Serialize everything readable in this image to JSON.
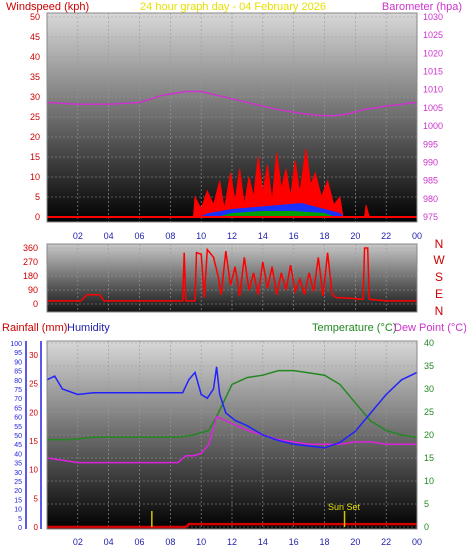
{
  "header": {
    "windspeed_label": "Windspeed (kph)",
    "title": "24 hour graph day - 04 February 2026",
    "barometer_label": "Barometer (hpa)"
  },
  "compass": [
    "N",
    "W",
    "S",
    "E",
    "N"
  ],
  "bottom_header": {
    "rain_label": "Rainfall (mm)",
    "humidity_label": "Humidity",
    "temp_label": "Temperature (°C)",
    "dew_label": "Dew Point (°C)"
  },
  "sunset_label": "Sun Set",
  "colors": {
    "wind": "#ff0000",
    "gust": "#ff0000",
    "wind_avg_fill": "#1a30ff",
    "wind_low_fill": "#00a000",
    "barometer": "#cc33cc",
    "direction": "#ff0000",
    "humidity": "#2222ff",
    "temperature": "#228822",
    "dewpoint": "#dd22dd",
    "rainfall": "#d40000",
    "sunset": "#d8c000",
    "title": "#e8e000",
    "dew_label": "#cc33cc"
  },
  "chart_data": [
    {
      "type": "line",
      "name": "wind-barometer",
      "x_tick_labels": [
        "02",
        "04",
        "06",
        "08",
        "10",
        "12",
        "14",
        "16",
        "18",
        "20",
        "22",
        "00"
      ],
      "x_range_hours": [
        0,
        24
      ],
      "y_left_ticks": [
        "0",
        "5",
        "10",
        "15",
        "20",
        "25",
        "30",
        "35",
        "40",
        "45",
        "50"
      ],
      "ylim_left": [
        0,
        50
      ],
      "y_right_ticks": [
        "975",
        "980",
        "985",
        "990",
        "995",
        "1000",
        "1005",
        "1010",
        "1015",
        "1020",
        "1025",
        "1030"
      ],
      "ylim_right": [
        975,
        1030
      ],
      "grid": true,
      "series": [
        {
          "name": "Barometer",
          "axis": "right",
          "points": [
            [
              0.0,
              1006.5
            ],
            [
              2.0,
              1006.0
            ],
            [
              4.0,
              1006.0
            ],
            [
              6.0,
              1006.5
            ],
            [
              7.5,
              1008.5
            ],
            [
              9.0,
              1009.5
            ],
            [
              10.0,
              1009.5
            ],
            [
              11.0,
              1008.5
            ],
            [
              12.0,
              1007.5
            ],
            [
              13.5,
              1006.0
            ],
            [
              15.0,
              1004.5
            ],
            [
              16.5,
              1003.5
            ],
            [
              17.5,
              1003.0
            ],
            [
              18.5,
              1002.8
            ],
            [
              19.5,
              1003.3
            ],
            [
              20.5,
              1004.5
            ],
            [
              22.0,
              1005.5
            ],
            [
              23.5,
              1006.3
            ],
            [
              24.0,
              1006.5
            ]
          ]
        },
        {
          "name": "Wind gust",
          "axis": "left",
          "points": [
            [
              0.0,
              0.0
            ],
            [
              9.5,
              0.0
            ],
            [
              9.6,
              5.0
            ],
            [
              10.0,
              2.0
            ],
            [
              10.4,
              6.5
            ],
            [
              10.8,
              3.0
            ],
            [
              11.2,
              9.0
            ],
            [
              11.5,
              2.0
            ],
            [
              11.9,
              11.0
            ],
            [
              12.2,
              4.0
            ],
            [
              12.5,
              12.0
            ],
            [
              12.8,
              3.0
            ],
            [
              13.1,
              10.0
            ],
            [
              13.4,
              5.0
            ],
            [
              13.7,
              15.0
            ],
            [
              14.0,
              6.0
            ],
            [
              14.3,
              13.0
            ],
            [
              14.6,
              4.0
            ],
            [
              14.9,
              16.0
            ],
            [
              15.2,
              7.0
            ],
            [
              15.5,
              12.0
            ],
            [
              15.8,
              5.0
            ],
            [
              16.1,
              14.0
            ],
            [
              16.4,
              6.0
            ],
            [
              16.8,
              17.0
            ],
            [
              17.1,
              8.0
            ],
            [
              17.4,
              11.0
            ],
            [
              17.8,
              5.0
            ],
            [
              18.2,
              9.0
            ],
            [
              18.6,
              3.0
            ],
            [
              19.0,
              5.0
            ],
            [
              19.2,
              0.0
            ],
            [
              20.6,
              0.0
            ],
            [
              20.7,
              3.0
            ],
            [
              20.9,
              0.0
            ],
            [
              24.0,
              0.0
            ]
          ]
        },
        {
          "name": "Wind average",
          "axis": "left",
          "points": [
            [
              0.0,
              0.0
            ],
            [
              9.8,
              0.0
            ],
            [
              10.5,
              1.0
            ],
            [
              12.0,
              2.0
            ],
            [
              13.5,
              2.5
            ],
            [
              15.0,
              3.0
            ],
            [
              16.5,
              3.5
            ],
            [
              18.0,
              2.0
            ],
            [
              19.0,
              1.0
            ],
            [
              19.3,
              0.0
            ],
            [
              24.0,
              0.0
            ]
          ]
        },
        {
          "name": "Wind low",
          "axis": "left",
          "points": [
            [
              0.0,
              0.0
            ],
            [
              11.0,
              0.0
            ],
            [
              12.0,
              1.0
            ],
            [
              14.0,
              1.5
            ],
            [
              16.0,
              1.5
            ],
            [
              18.0,
              1.0
            ],
            [
              18.8,
              0.0
            ],
            [
              24.0,
              0.0
            ]
          ]
        }
      ]
    },
    {
      "type": "line",
      "name": "wind-direction",
      "y_ticks": [
        "0",
        "90",
        "180",
        "270",
        "360"
      ],
      "ylim": [
        0,
        360
      ],
      "x_range_hours": [
        0,
        24
      ],
      "grid": true,
      "series": [
        {
          "name": "Wind direction",
          "points": [
            [
              0.0,
              20.0
            ],
            [
              2.2,
              20.0
            ],
            [
              2.6,
              60.0
            ],
            [
              3.4,
              60.0
            ],
            [
              3.7,
              20.0
            ],
            [
              8.8,
              20.0
            ],
            [
              8.9,
              330.0
            ],
            [
              9.0,
              20.0
            ],
            [
              9.6,
              20.0
            ],
            [
              9.7,
              330.0
            ],
            [
              10.0,
              320.0
            ],
            [
              10.2,
              40.0
            ],
            [
              10.4,
              350.0
            ],
            [
              10.8,
              300.0
            ],
            [
              11.1,
              180.0
            ],
            [
              11.3,
              60.0
            ],
            [
              11.6,
              340.0
            ],
            [
              11.9,
              120.0
            ],
            [
              12.2,
              240.0
            ],
            [
              12.5,
              50.0
            ],
            [
              12.8,
              300.0
            ],
            [
              13.1,
              90.0
            ],
            [
              13.4,
              200.0
            ],
            [
              13.7,
              60.0
            ],
            [
              14.0,
              270.0
            ],
            [
              14.3,
              100.0
            ],
            [
              14.6,
              240.0
            ],
            [
              14.9,
              60.0
            ],
            [
              15.2,
              200.0
            ],
            [
              15.5,
              90.0
            ],
            [
              15.8,
              250.0
            ],
            [
              16.1,
              80.0
            ],
            [
              16.4,
              160.0
            ],
            [
              16.7,
              60.0
            ],
            [
              17.0,
              200.0
            ],
            [
              17.3,
              80.0
            ],
            [
              17.6,
              300.0
            ],
            [
              17.9,
              50.0
            ],
            [
              18.2,
              330.0
            ],
            [
              18.5,
              60.0
            ],
            [
              18.8,
              40.0
            ],
            [
              19.2,
              40.0
            ],
            [
              20.5,
              30.0
            ],
            [
              20.6,
              360.0
            ],
            [
              20.8,
              360.0
            ],
            [
              20.9,
              30.0
            ],
            [
              22.0,
              20.0
            ],
            [
              24.0,
              20.0
            ]
          ]
        }
      ]
    },
    {
      "type": "line",
      "name": "humidity-temperature-rain",
      "x_tick_labels": [
        "02",
        "04",
        "06",
        "08",
        "10",
        "12",
        "14",
        "16",
        "18",
        "20",
        "22",
        "00"
      ],
      "x_range_hours": [
        0,
        24
      ],
      "y_humidity_ticks": [
        "0",
        "5",
        "10",
        "15",
        "20",
        "25",
        "30",
        "35",
        "40",
        "45",
        "50",
        "55",
        "60",
        "65",
        "70",
        "75",
        "80",
        "85",
        "90",
        "95",
        "100"
      ],
      "ylim_humidity": [
        0,
        100
      ],
      "y_rain_ticks": [
        "0",
        "5",
        "10",
        "15",
        "20",
        "25",
        "30"
      ],
      "ylim_rain": [
        0,
        30
      ],
      "y_temp_ticks": [
        "0",
        "5",
        "10",
        "15",
        "20",
        "25",
        "30",
        "35",
        "40"
      ],
      "ylim_temp": [
        0,
        40
      ],
      "grid": true,
      "series": [
        {
          "name": "Humidity",
          "axis": "humidity",
          "points": [
            [
              0.0,
              80.0
            ],
            [
              0.5,
              82.0
            ],
            [
              1.0,
              75.0
            ],
            [
              2.0,
              72.0
            ],
            [
              3.0,
              73.0
            ],
            [
              4.0,
              73.0
            ],
            [
              6.0,
              73.0
            ],
            [
              7.5,
              73.0
            ],
            [
              8.2,
              73.0
            ],
            [
              8.8,
              73.0
            ],
            [
              9.2,
              80.0
            ],
            [
              9.6,
              84.0
            ],
            [
              10.0,
              72.0
            ],
            [
              10.4,
              70.0
            ],
            [
              10.8,
              75.0
            ],
            [
              11.0,
              87.0
            ],
            [
              11.2,
              72.0
            ],
            [
              11.6,
              62.0
            ],
            [
              12.2,
              58.0
            ],
            [
              13.0,
              55.0
            ],
            [
              14.0,
              50.0
            ],
            [
              15.0,
              47.0
            ],
            [
              16.0,
              45.0
            ],
            [
              17.0,
              44.0
            ],
            [
              18.0,
              43.0
            ],
            [
              19.0,
              46.0
            ],
            [
              20.0,
              52.0
            ],
            [
              21.0,
              62.0
            ],
            [
              22.0,
              72.0
            ],
            [
              23.0,
              80.0
            ],
            [
              24.0,
              84.0
            ]
          ]
        },
        {
          "name": "Temperature",
          "axis": "temp",
          "points": [
            [
              0.0,
              19.0
            ],
            [
              1.5,
              19.0
            ],
            [
              3.0,
              19.5
            ],
            [
              5.0,
              19.5
            ],
            [
              7.5,
              19.5
            ],
            [
              8.5,
              19.5
            ],
            [
              9.5,
              20.0
            ],
            [
              10.5,
              21.0
            ],
            [
              11.0,
              24.0
            ],
            [
              12.0,
              31.0
            ],
            [
              13.0,
              32.5
            ],
            [
              14.0,
              33.0
            ],
            [
              15.0,
              34.0
            ],
            [
              16.0,
              34.0
            ],
            [
              17.0,
              33.5
            ],
            [
              18.0,
              33.0
            ],
            [
              19.0,
              31.0
            ],
            [
              20.0,
              27.0
            ],
            [
              21.0,
              23.0
            ],
            [
              22.0,
              21.0
            ],
            [
              23.0,
              20.0
            ],
            [
              24.0,
              19.5
            ]
          ]
        },
        {
          "name": "Dew Point",
          "axis": "temp",
          "points": [
            [
              0.0,
              15.0
            ],
            [
              1.0,
              14.5
            ],
            [
              2.0,
              14.0
            ],
            [
              4.0,
              14.0
            ],
            [
              6.0,
              14.0
            ],
            [
              8.5,
              14.0
            ],
            [
              9.0,
              15.5
            ],
            [
              9.5,
              15.5
            ],
            [
              10.0,
              16.0
            ],
            [
              10.5,
              18.0
            ],
            [
              11.0,
              24.0
            ],
            [
              12.0,
              22.5
            ],
            [
              13.0,
              21.0
            ],
            [
              14.0,
              20.0
            ],
            [
              15.0,
              19.0
            ],
            [
              16.0,
              18.5
            ],
            [
              17.0,
              18.0
            ],
            [
              18.0,
              18.0
            ],
            [
              19.0,
              18.0
            ],
            [
              20.0,
              18.5
            ],
            [
              21.0,
              18.5
            ],
            [
              22.0,
              18.0
            ],
            [
              23.0,
              18.0
            ],
            [
              24.0,
              18.0
            ]
          ]
        },
        {
          "name": "Rainfall",
          "axis": "rain",
          "points": [
            [
              0.0,
              0.0
            ],
            [
              9.0,
              0.0
            ],
            [
              9.2,
              0.5
            ],
            [
              24.0,
              0.5
            ]
          ]
        }
      ],
      "markers": [
        {
          "label": "",
          "x_hours": 6.8
        },
        {
          "label": "Sun Set",
          "x_hours": 19.3
        }
      ]
    }
  ]
}
